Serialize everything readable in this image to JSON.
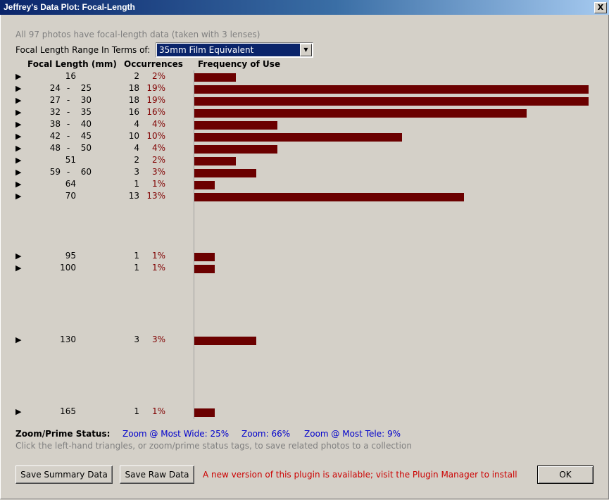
{
  "window": {
    "title": "Jeffrey's Data Plot: Focal-Length",
    "close_glyph": "X"
  },
  "summary": "All 97 photos have focal-length data (taken with 3 lenses)",
  "range": {
    "label": "Focal Length Range In Terms of:",
    "selected": "35mm Film Equivalent"
  },
  "headers": {
    "focal": "Focal Length (mm)",
    "occurrences": "Occurrences",
    "frequency": "Frequency of Use"
  },
  "colors": {
    "bar": "#6b0000",
    "percent": "#800000",
    "link": "#0000cc",
    "notice": "#cc0000"
  },
  "rows": [
    {
      "lo": "16",
      "hi": "",
      "count": "2",
      "pct": "2%",
      "percent": 2
    },
    {
      "lo": "24",
      "hi": "25",
      "count": "18",
      "pct": "19%",
      "percent": 19
    },
    {
      "lo": "27",
      "hi": "30",
      "count": "18",
      "pct": "19%",
      "percent": 19
    },
    {
      "lo": "32",
      "hi": "35",
      "count": "16",
      "pct": "16%",
      "percent": 16
    },
    {
      "lo": "38",
      "hi": "40",
      "count": "4",
      "pct": "4%",
      "percent": 4
    },
    {
      "lo": "42",
      "hi": "45",
      "count": "10",
      "pct": "10%",
      "percent": 10
    },
    {
      "lo": "48",
      "hi": "50",
      "count": "4",
      "pct": "4%",
      "percent": 4
    },
    {
      "lo": "51",
      "hi": "",
      "count": "2",
      "pct": "2%",
      "percent": 2
    },
    {
      "lo": "59",
      "hi": "60",
      "count": "3",
      "pct": "3%",
      "percent": 3
    },
    {
      "lo": "64",
      "hi": "",
      "count": "1",
      "pct": "1%",
      "percent": 1
    },
    {
      "lo": "70",
      "hi": "",
      "count": "13",
      "pct": "13%",
      "percent": 13
    },
    {
      "lo": "95",
      "hi": "",
      "count": "1",
      "pct": "1%",
      "percent": 1
    },
    {
      "lo": "100",
      "hi": "",
      "count": "1",
      "pct": "1%",
      "percent": 1
    },
    {
      "lo": "130",
      "hi": "",
      "count": "3",
      "pct": "3%",
      "percent": 3
    },
    {
      "lo": "165",
      "hi": "",
      "count": "1",
      "pct": "1%",
      "percent": 1
    }
  ],
  "status": {
    "label": "Zoom/Prime Status:",
    "wide": "Zoom @ Most Wide: 25%",
    "zoom": "Zoom: 66%",
    "tele": "Zoom @ Most Tele: 9%"
  },
  "hint": "Click the left-hand triangles, or zoom/prime status tags, to save related photos to a collection",
  "buttons": {
    "save_summary": "Save Summary Data",
    "save_raw": "Save Raw Data",
    "ok": "OK"
  },
  "notice": "A new version of this plugin is available; visit the Plugin Manager to install"
}
